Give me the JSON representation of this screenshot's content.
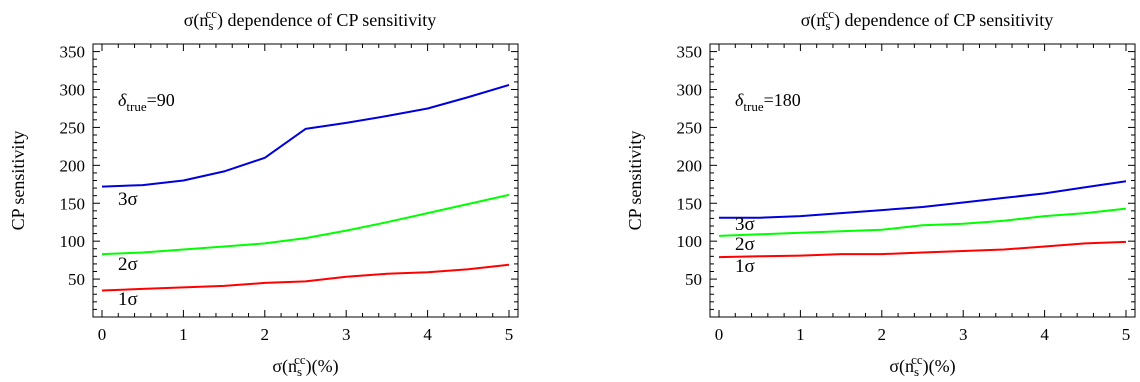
{
  "colors": {
    "1sigma": "#ff0000",
    "2sigma": "#00ff00",
    "3sigma": "#0000dd"
  },
  "chart_data": [
    {
      "type": "line",
      "title_prefix": "σ(n",
      "title_sub": "s",
      "title_sup": "cc",
      "title_suffix": ") dependence of CP sensitivity",
      "ylabel": "CP sensitivity",
      "xlabel_prefix": "σ(n",
      "xlabel_sub": "s",
      "xlabel_sup": "cc",
      "xlabel_suffix": ")(%)",
      "annotation_delta": "δ",
      "annotation_sub": "true",
      "annotation_value": "=90",
      "xlim": [
        0,
        5
      ],
      "ylim": [
        0,
        360
      ],
      "x_ticks": [
        "0",
        "1",
        "2",
        "3",
        "4",
        "5"
      ],
      "y_ticks": [
        "50",
        "100",
        "150",
        "200",
        "250",
        "300",
        "350"
      ],
      "x": [
        0,
        0.5,
        1,
        1.5,
        2,
        2.5,
        3,
        3.5,
        4,
        4.5,
        5
      ],
      "series": [
        {
          "name": "1σ",
          "values": [
            35,
            37,
            39,
            41,
            45,
            47,
            53,
            57,
            59,
            63,
            69
          ]
        },
        {
          "name": "2σ",
          "values": [
            83,
            85,
            89,
            93,
            97,
            104,
            114,
            125,
            137,
            149,
            161
          ]
        },
        {
          "name": "3σ",
          "values": [
            172,
            174,
            180,
            192,
            210,
            248,
            256,
            265,
            275,
            290,
            306
          ]
        }
      ]
    },
    {
      "type": "line",
      "title_prefix": "σ(n",
      "title_sub": "s",
      "title_sup": "cc",
      "title_suffix": ") dependence of CP sensitivity",
      "ylabel": "CP sensitivity",
      "xlabel_prefix": "σ(n",
      "xlabel_sub": "s",
      "xlabel_sup": "cc",
      "xlabel_suffix": ")(%)",
      "annotation_delta": "δ",
      "annotation_sub": "true",
      "annotation_value": "=180",
      "xlim": [
        0,
        5
      ],
      "ylim": [
        0,
        360
      ],
      "x_ticks": [
        "0",
        "1",
        "2",
        "3",
        "4",
        "5"
      ],
      "y_ticks": [
        "50",
        "100",
        "150",
        "200",
        "250",
        "300",
        "350"
      ],
      "x": [
        0,
        0.5,
        1,
        1.5,
        2,
        2.5,
        3,
        3.5,
        4,
        4.5,
        5
      ],
      "series": [
        {
          "name": "1σ",
          "values": [
            79,
            80,
            81,
            83,
            83,
            85,
            87,
            89,
            93,
            97,
            99
          ]
        },
        {
          "name": "2σ",
          "values": [
            107,
            109,
            111,
            113,
            115,
            121,
            123,
            127,
            133,
            137,
            143
          ]
        },
        {
          "name": "3σ",
          "values": [
            131,
            131,
            133,
            137,
            141,
            145,
            151,
            157,
            163,
            171,
            179
          ]
        }
      ]
    }
  ]
}
